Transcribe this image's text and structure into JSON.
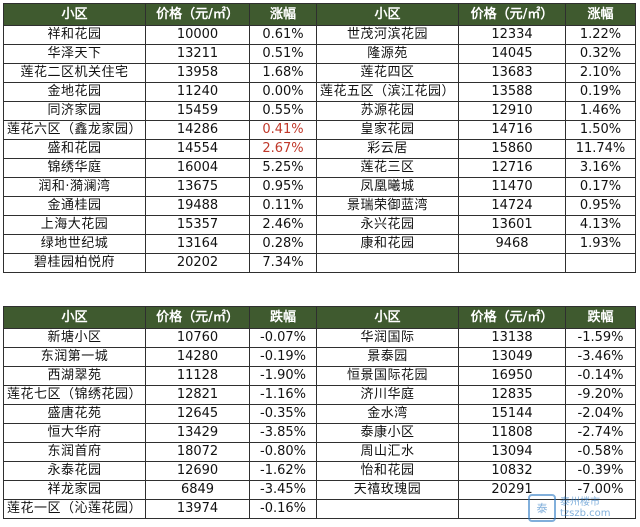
{
  "upper": {
    "headers": [
      "小区",
      "价格（元/㎡）",
      "涨幅",
      "小区",
      "价格（元/㎡）",
      "涨幅"
    ],
    "rows": [
      {
        "l": {
          "name": "祥和花园",
          "price": "10000",
          "change": "0.61%"
        },
        "r": {
          "name": "世茂河滨花园",
          "price": "12334",
          "change": "1.22%"
        }
      },
      {
        "l": {
          "name": "华泽天下",
          "price": "13211",
          "change": "0.51%"
        },
        "r": {
          "name": "隆源苑",
          "price": "14045",
          "change": "0.32%"
        }
      },
      {
        "l": {
          "name": "莲花二区机关住宅",
          "price": "13958",
          "change": "1.68%"
        },
        "r": {
          "name": "莲花四区",
          "price": "13683",
          "change": "2.10%"
        }
      },
      {
        "l": {
          "name": "金地花园",
          "price": "11240",
          "change": "0.00%"
        },
        "r": {
          "name": "莲花五区（滨江花园）",
          "price": "13588",
          "change": "0.19%"
        }
      },
      {
        "l": {
          "name": "同济家园",
          "price": "15459",
          "change": "0.55%"
        },
        "r": {
          "name": "苏源花园",
          "price": "12910",
          "change": "1.46%"
        }
      },
      {
        "l": {
          "name": "莲花六区（鑫龙家园）",
          "price": "14286",
          "change": "0.41%"
        },
        "r": {
          "name": "皇家花园",
          "price": "14716",
          "change": "1.50%"
        }
      },
      {
        "l": {
          "name": "盛和花园",
          "price": "14554",
          "change": "2.67%"
        },
        "r": {
          "name": "彩云居",
          "price": "15860",
          "change": "11.74%"
        }
      },
      {
        "l": {
          "name": "锦绣华庭",
          "price": "16004",
          "change": "5.25%"
        },
        "r": {
          "name": "莲花三区",
          "price": "12716",
          "change": "3.16%"
        }
      },
      {
        "l": {
          "name": "润和·漪澜湾",
          "price": "13675",
          "change": "0.95%"
        },
        "r": {
          "name": "凤凰曦城",
          "price": "11470",
          "change": "0.17%"
        }
      },
      {
        "l": {
          "name": "金通桂园",
          "price": "19488",
          "change": "0.11%"
        },
        "r": {
          "name": "景瑞荣御蓝湾",
          "price": "14724",
          "change": "0.95%"
        }
      },
      {
        "l": {
          "name": "上海大花园",
          "price": "15357",
          "change": "2.46%"
        },
        "r": {
          "name": "永兴花园",
          "price": "13601",
          "change": "4.13%"
        }
      },
      {
        "l": {
          "name": "绿地世纪城",
          "price": "13164",
          "change": "0.28%"
        },
        "r": {
          "name": "康和花园",
          "price": "9468",
          "change": "1.93%"
        }
      },
      {
        "l": {
          "name": "碧桂园柏悦府",
          "price": "20202",
          "change": "7.34%"
        },
        "r": {
          "name": "",
          "price": "",
          "change": ""
        }
      }
    ]
  },
  "lower": {
    "headers": [
      "小区",
      "价格（元/㎡）",
      "跌幅",
      "小区",
      "价格（元/㎡）",
      "跌幅"
    ],
    "rows": [
      {
        "l": {
          "name": "新塘小区",
          "price": "10760",
          "change": "-0.07%"
        },
        "r": {
          "name": "华润国际",
          "price": "13138",
          "change": "-1.59%"
        }
      },
      {
        "l": {
          "name": "东润第一城",
          "price": "14280",
          "change": "-0.19%"
        },
        "r": {
          "name": "景泰园",
          "price": "13049",
          "change": "-3.46%"
        }
      },
      {
        "l": {
          "name": "西湖翠苑",
          "price": "11128",
          "change": "-1.90%"
        },
        "r": {
          "name": "恒景国际花园",
          "price": "16950",
          "change": "-0.14%"
        }
      },
      {
        "l": {
          "name": "莲花七区（锦绣花园）",
          "price": "12821",
          "change": "-1.16%"
        },
        "r": {
          "name": "济川华庭",
          "price": "12835",
          "change": "-9.20%"
        }
      },
      {
        "l": {
          "name": "盛唐花苑",
          "price": "12645",
          "change": "-0.35%"
        },
        "r": {
          "name": "金水湾",
          "price": "15144",
          "change": "-2.04%"
        }
      },
      {
        "l": {
          "name": "恒大华府",
          "price": "13429",
          "change": "-3.85%"
        },
        "r": {
          "name": "泰康小区",
          "price": "11808",
          "change": "-2.74%"
        }
      },
      {
        "l": {
          "name": "东润首府",
          "price": "18072",
          "change": "-0.80%"
        },
        "r": {
          "name": "周山汇水",
          "price": "13094",
          "change": "-0.58%"
        }
      },
      {
        "l": {
          "name": "永泰花园",
          "price": "12690",
          "change": "-1.62%"
        },
        "r": {
          "name": "怡和花园",
          "price": "10832",
          "change": "-0.39%"
        }
      },
      {
        "l": {
          "name": "祥龙家园",
          "price": "6849",
          "change": "-3.45%"
        },
        "r": {
          "name": "天禧玫瑰园",
          "price": "20291",
          "change": "-7.00%"
        }
      },
      {
        "l": {
          "name": "莲花一区（沁莲花园）",
          "price": "13974",
          "change": "-0.16%"
        },
        "r": {
          "name": "",
          "price": "",
          "change": ""
        }
      }
    ]
  },
  "watermark": {
    "site": "泰州楼市",
    "url": "tzszb.com",
    "logo": "泰"
  }
}
